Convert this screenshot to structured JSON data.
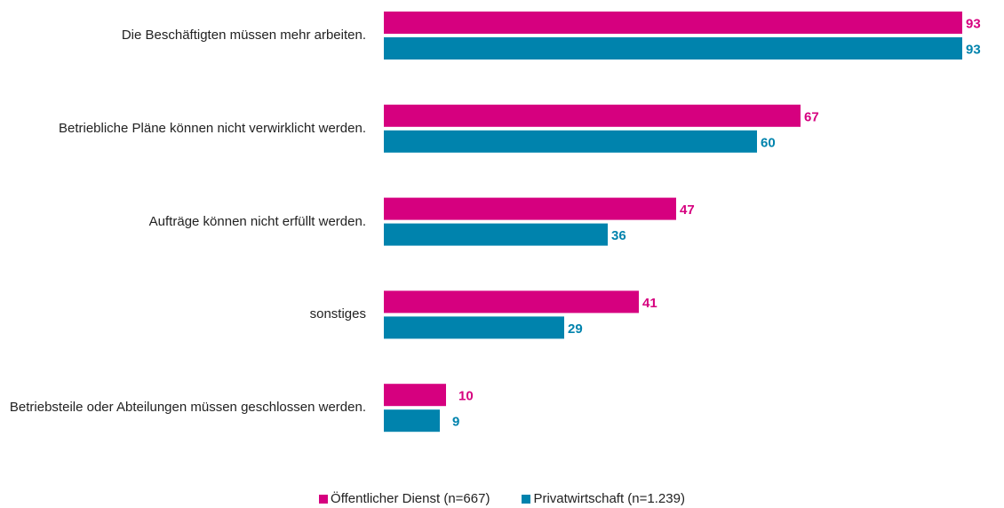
{
  "chart_data": {
    "type": "bar",
    "orientation": "horizontal",
    "categories": [
      "Die Beschäftigten müssen mehr arbeiten.",
      "Betriebliche Pläne können nicht verwirklicht werden.",
      "Aufträge können nicht erfüllt werden.",
      "sonstiges",
      "Betriebsteile oder Abteilungen müssen geschlossen werden."
    ],
    "series": [
      {
        "name": "Öffentlicher Dienst (n=667)",
        "color": "#d6007f",
        "values": [
          93,
          67,
          47,
          41,
          10
        ]
      },
      {
        "name": "Privatwirtschaft (n=1.239)",
        "color": "#0083ad",
        "values": [
          93,
          60,
          36,
          29,
          9
        ]
      }
    ],
    "legend": "bottom"
  }
}
